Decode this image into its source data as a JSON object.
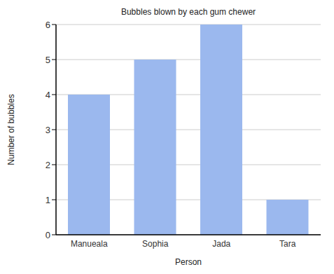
{
  "chart_data": {
    "type": "bar",
    "title": "Bubbles blown by each gum chewer",
    "x_label": "Person",
    "y_label": "Number of bubbles",
    "categories": [
      "Manueala",
      "Sophia",
      "Jada",
      "Tara"
    ],
    "values": [
      4,
      5,
      6,
      1
    ],
    "color": "#9bb8ee",
    "ylim": [
      0,
      6
    ],
    "yticks": [
      0,
      1,
      2,
      3,
      4,
      5,
      6
    ],
    "grid": true
  }
}
